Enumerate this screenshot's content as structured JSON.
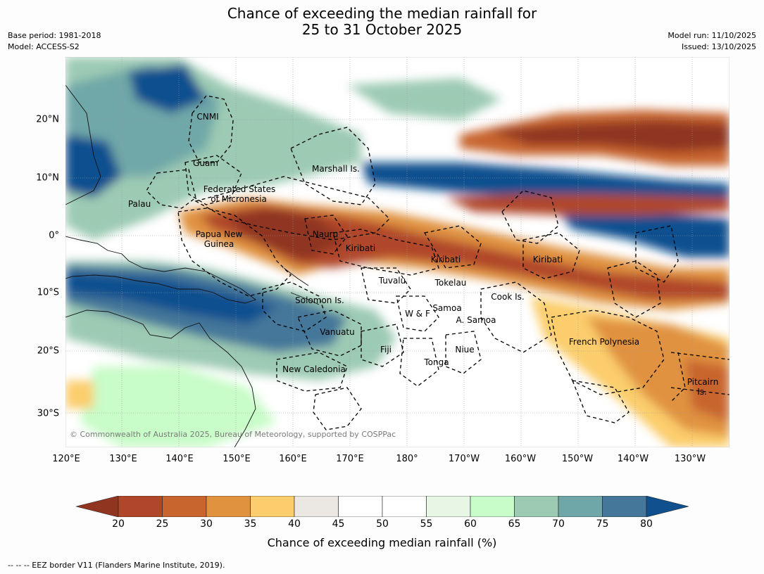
{
  "title_line1": "Chance of exceeding the median rainfall for",
  "title_line2": "25 to 31 October 2025",
  "meta_left": [
    "Base period: 1981-2018",
    "Model: ACCESS-S2"
  ],
  "meta_right": [
    "Model run: 11/10/2025",
    "Issued: 13/10/2025"
  ],
  "lon_labels": [
    "120°E",
    "130°E",
    "140°E",
    "150°E",
    "160°E",
    "170°E",
    "180°",
    "170°W",
    "160°W",
    "150°W",
    "140°W",
    "130°W"
  ],
  "lat_labels": [
    "20°N",
    "10°N",
    "0°",
    "10°S",
    "20°S",
    "30°S"
  ],
  "places": [
    "CNMI",
    "Guam",
    "Marshall Is.",
    "Federated States",
    "of Micronesia",
    "Palau",
    "Papua New",
    "Guinea",
    "Nauru",
    "Kiribati",
    "Kiribati",
    "Kiribati",
    "Tuvalu",
    "Tokelau",
    "Solomon Is.",
    "Cook Is.",
    "W & F",
    "Samoa",
    "A. Samoa",
    "Vanuatu",
    "French Polynesia",
    "Fiji",
    "Niue",
    "Tonga",
    "New Caledonia",
    "Pitcairn",
    "Is."
  ],
  "copyright": "© Commonwealth of Australia 2025, Bureau of Meteorology, supported by COSPPac",
  "colorbar": {
    "ticks": [
      "20",
      "25",
      "30",
      "35",
      "40",
      "45",
      "50",
      "55",
      "60",
      "65",
      "70",
      "75",
      "80"
    ],
    "colors": [
      "#8f3520",
      "#b0472a",
      "#c8652f",
      "#e0923f",
      "#fbcd6c",
      "#ebe8e3",
      "#ffffff",
      "#ffffff",
      "#e8f6e6",
      "#c8fcc8",
      "#9ccab3",
      "#6fa7a8",
      "#44779a",
      "#10508f"
    ],
    "label": "Chance of exceeding median rainfall (%)"
  },
  "footer": "--  --  -- EEZ border V11 (Flanders Marine Institute, 2019)."
}
